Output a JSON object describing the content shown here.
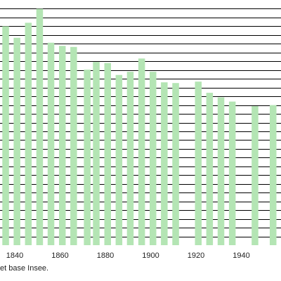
{
  "chart_data": {
    "type": "bar",
    "x": [
      1836,
      1841,
      1846,
      1851,
      1856,
      1861,
      1866,
      1872,
      1876,
      1881,
      1886,
      1891,
      1896,
      1901,
      1906,
      1911,
      1921,
      1926,
      1931,
      1936,
      1946,
      1954
    ],
    "values": [
      625,
      592,
      635,
      675,
      578,
      569,
      566,
      501,
      523,
      520,
      486,
      495,
      533,
      495,
      465,
      463,
      467,
      435,
      422,
      410,
      397,
      400
    ],
    "x_tick_labels": [
      "1840",
      "1860",
      "1880",
      "1900",
      "1920",
      "1940"
    ],
    "xlim": [
      1833.5,
      1957.5
    ],
    "ylim": [
      0,
      700
    ],
    "y_gridline_step": 25,
    "grid": true,
    "title": "",
    "xlabel": "",
    "ylabel": "",
    "bar_color": "#b4e5b4",
    "grid_color": "#000000"
  },
  "source_note": "et base Insee."
}
